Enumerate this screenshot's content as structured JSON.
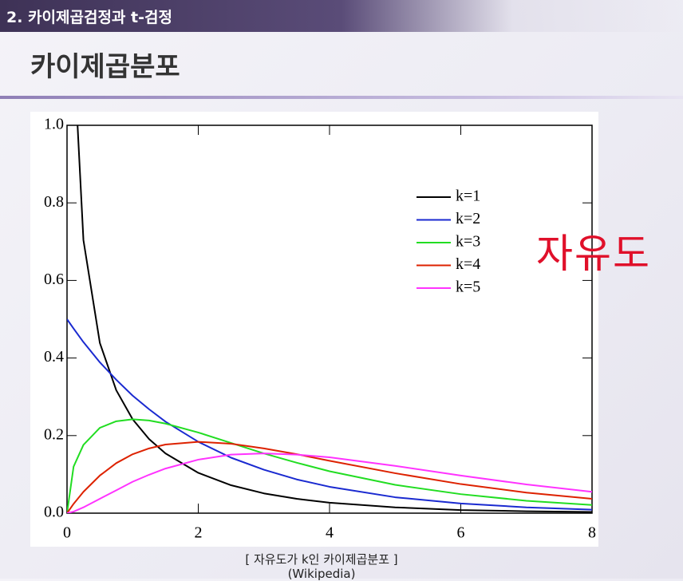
{
  "header": {
    "section": "2. 카이제곱검정과 t-검정",
    "title": "카이제곱분포"
  },
  "annotation": "자유도",
  "caption": [
    "[ 자유도가 k인 카이제곱분포 ]",
    "(Wikipedia)"
  ],
  "chart_data": {
    "type": "line",
    "x": [
      0,
      0.1,
      0.25,
      0.5,
      0.75,
      1,
      1.25,
      1.5,
      2,
      2.5,
      3,
      3.5,
      4,
      5,
      6,
      7,
      8
    ],
    "series": [
      {
        "name": "k=1",
        "color": "#000000",
        "values": [
          null,
          1.2,
          0.704,
          0.439,
          0.317,
          0.242,
          0.191,
          0.154,
          0.104,
          0.072,
          0.051,
          0.037,
          0.027,
          0.015,
          0.008,
          0.005,
          0.003
        ]
      },
      {
        "name": "k=2",
        "color": "#1a2ad0",
        "values": [
          0.5,
          0.476,
          0.441,
          0.389,
          0.344,
          0.303,
          0.268,
          0.236,
          0.184,
          0.143,
          0.112,
          0.087,
          0.068,
          0.041,
          0.025,
          0.015,
          0.009
        ]
      },
      {
        "name": "k=3",
        "color": "#22dd22",
        "values": [
          0,
          0.12,
          0.176,
          0.22,
          0.237,
          0.242,
          0.239,
          0.231,
          0.208,
          0.181,
          0.154,
          0.13,
          0.108,
          0.073,
          0.049,
          0.032,
          0.021
        ]
      },
      {
        "name": "k=4",
        "color": "#dd2200",
        "values": [
          0,
          0.024,
          0.055,
          0.097,
          0.129,
          0.152,
          0.167,
          0.177,
          0.184,
          0.179,
          0.167,
          0.152,
          0.135,
          0.103,
          0.075,
          0.053,
          0.037
        ]
      },
      {
        "name": "k=5",
        "color": "#ff33ff",
        "values": [
          0,
          0.004,
          0.015,
          0.037,
          0.059,
          0.081,
          0.099,
          0.115,
          0.138,
          0.151,
          0.154,
          0.151,
          0.144,
          0.122,
          0.097,
          0.074,
          0.055
        ]
      }
    ],
    "xlim": [
      0,
      8
    ],
    "xticks": [
      0,
      2,
      4,
      6,
      8
    ],
    "ylim": [
      0,
      1
    ],
    "yticks": [
      {
        "value": 0,
        "label": "0.0"
      },
      0.2,
      0.4,
      0.6,
      0.8,
      {
        "value": 1,
        "label": "1.0"
      }
    ],
    "legend": "upper right"
  }
}
